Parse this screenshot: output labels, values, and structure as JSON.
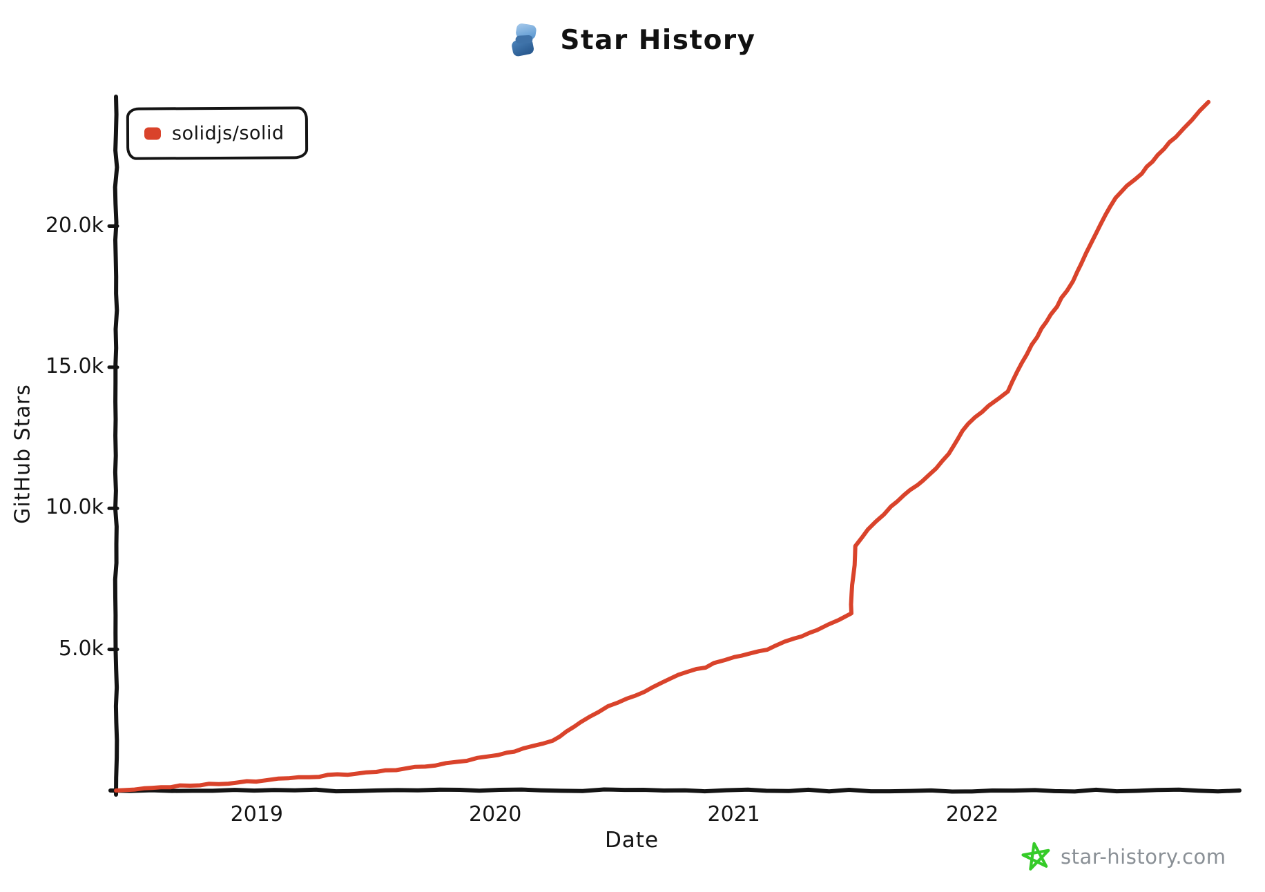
{
  "header": {
    "title": "Star History"
  },
  "logo": {
    "icon": "star-history-logo",
    "top_gradient": [
      "#a9cbec",
      "#5e9ad2"
    ],
    "bottom_gradient": [
      "#4d84bb",
      "#2b5c92"
    ]
  },
  "legend": {
    "position": "top-left",
    "items": [
      {
        "label": "solidjs/solid",
        "color": "#d9432b"
      }
    ]
  },
  "watermark": {
    "text": "star-history.com",
    "star_color": "#35cb28",
    "text_color": "#8a9096"
  },
  "colors": {
    "axis": "#141414",
    "background": "#ffffff"
  },
  "chart_data": {
    "type": "line",
    "title": "Star History",
    "xlabel": "Date",
    "ylabel": "GitHub Stars",
    "x_ticks": [
      "2019",
      "2020",
      "2021",
      "2022"
    ],
    "x_tick_values": [
      2019,
      2020,
      2021,
      2022
    ],
    "y_ticks": [
      "5.0k",
      "10.0k",
      "15.0k",
      "20.0k"
    ],
    "y_tick_values": [
      5000,
      10000,
      15000,
      20000
    ],
    "xlim": [
      2018.41,
      2023.12
    ],
    "ylim": [
      0,
      25200
    ],
    "grid": false,
    "legend_position": "top-left",
    "style": "hand-drawn-xkcd",
    "series": [
      {
        "name": "solidjs/solid",
        "color": "#d9432b",
        "points": [
          [
            2018.41,
            0
          ],
          [
            2018.6,
            110
          ],
          [
            2018.8,
            220
          ],
          [
            2019.0,
            340
          ],
          [
            2019.26,
            510
          ],
          [
            2019.5,
            660
          ],
          [
            2019.75,
            900
          ],
          [
            2020.01,
            1250
          ],
          [
            2020.12,
            1470
          ],
          [
            2020.24,
            1760
          ],
          [
            2020.36,
            2400
          ],
          [
            2020.47,
            2980
          ],
          [
            2020.59,
            3350
          ],
          [
            2020.77,
            4100
          ],
          [
            2020.88,
            4380
          ],
          [
            2021.0,
            4720
          ],
          [
            2021.14,
            4990
          ],
          [
            2021.25,
            5380
          ],
          [
            2021.35,
            5670
          ],
          [
            2021.44,
            6060
          ],
          [
            2021.49,
            6260
          ],
          [
            2021.51,
            8680
          ],
          [
            2021.56,
            9270
          ],
          [
            2021.66,
            10070
          ],
          [
            2021.74,
            10640
          ],
          [
            2021.82,
            11170
          ],
          [
            2021.9,
            11930
          ],
          [
            2021.98,
            13010
          ],
          [
            2022.07,
            13620
          ],
          [
            2022.15,
            14130
          ],
          [
            2022.21,
            15160
          ],
          [
            2022.27,
            16090
          ],
          [
            2022.33,
            16870
          ],
          [
            2022.4,
            17730
          ],
          [
            2022.46,
            18700
          ],
          [
            2022.52,
            19760
          ],
          [
            2022.56,
            20420
          ],
          [
            2022.6,
            20980
          ],
          [
            2022.62,
            21200
          ],
          [
            2022.71,
            21880
          ],
          [
            2022.78,
            22500
          ],
          [
            2022.85,
            23180
          ],
          [
            2022.92,
            23790
          ],
          [
            2022.99,
            24400
          ]
        ]
      }
    ]
  }
}
